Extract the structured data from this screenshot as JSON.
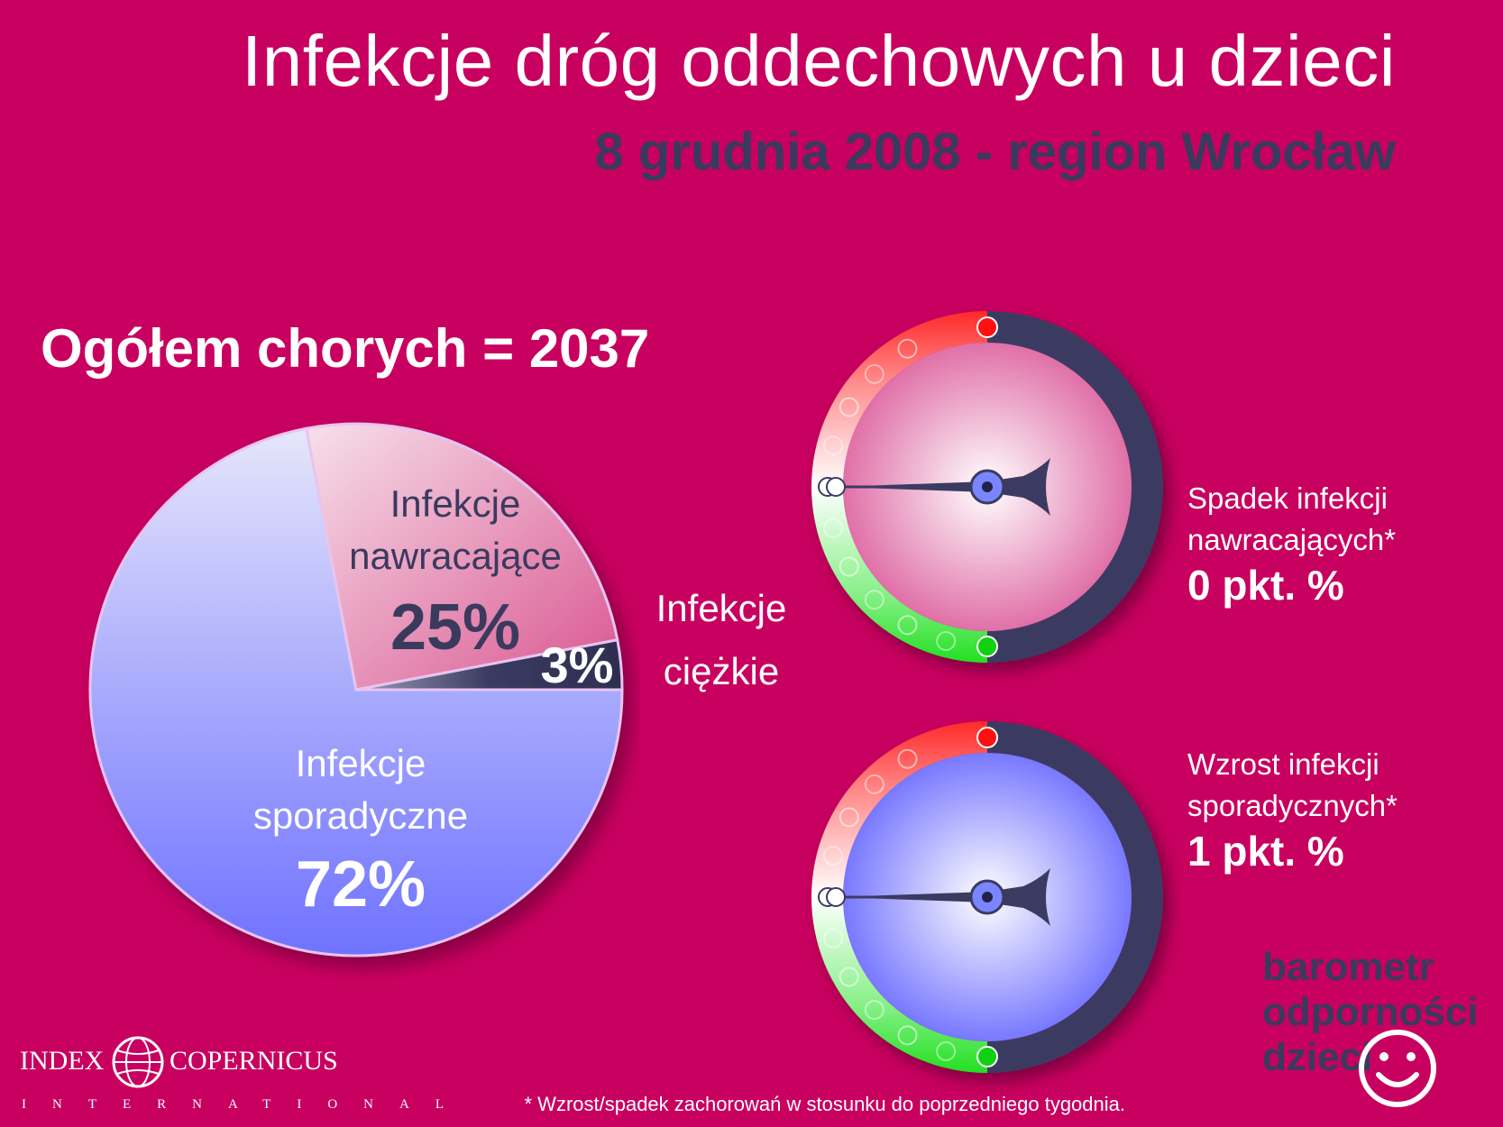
{
  "header": {
    "title": "Infekcje dróg oddechowych u dzieci",
    "subtitle": "8 grudnia 2008 - region Wrocław"
  },
  "total_label": "Ogółem chorych = 2037",
  "chart_data": [
    {
      "type": "pie",
      "title": "",
      "slices": [
        {
          "label_line1": "Infekcje",
          "label_line2": "sporadyczne",
          "value": 72,
          "display": "72%",
          "color": "#8a8cff"
        },
        {
          "label_line1": "Infekcje",
          "label_line2": "nawracające",
          "value": 25,
          "display": "25%",
          "color": "#e58ab2"
        },
        {
          "label_line1": "Infekcje",
          "label_line2": "ciężkie",
          "value": 3,
          "display": "3%",
          "color": "#3b3b62"
        }
      ]
    },
    {
      "type": "gauge",
      "line1": "Spadek infekcji",
      "line2": "nawracających*",
      "value_text": "0 pkt. %",
      "value": 0,
      "face_color": "#e070a8"
    },
    {
      "type": "gauge",
      "line1": "Wzrost infekcji",
      "line2": "sporadycznych*",
      "value_text": "1 pkt. %",
      "value": 1,
      "face_color": "#7878ff"
    }
  ],
  "footnote": "* Wzrost/spadek zachorowań w stosunku do poprzedniego tygodnia.",
  "logos": {
    "index_copernicus": {
      "left": "INDEX",
      "right": "COPERNICUS",
      "bottom": "INTERNATIONAL"
    },
    "barometr": {
      "line1": "barometr",
      "line2": "odporności",
      "line3": "dzieci"
    }
  },
  "colors": {
    "background": "#c8005f",
    "navy": "#3a3a5e",
    "gauge_red": "#ff2020",
    "gauge_green": "#20e020"
  }
}
